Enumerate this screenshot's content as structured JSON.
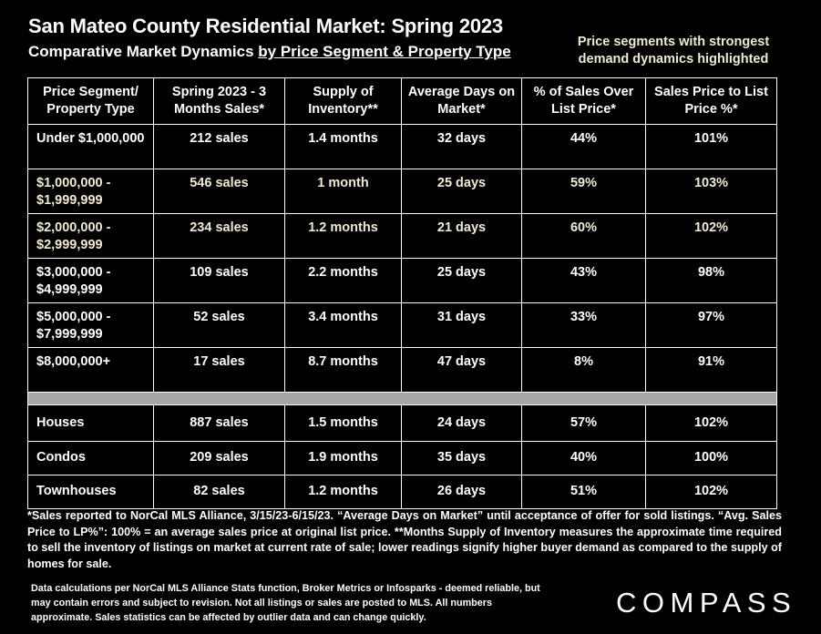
{
  "header": {
    "title": "San Mateo County Residential Market:  Spring 2023",
    "subtitle_plain": "Comparative Market Dynamics ",
    "subtitle_underlined": "by Price Segment & Property Type",
    "highlight_note": "Price segments with strongest demand dynamics highlighted"
  },
  "table": {
    "columns": [
      "Price Segment/ Property Type",
      "Spring 2023 - 3 Months Sales*",
      "Supply of Inventory**",
      "Average Days on Market*",
      "% of Sales Over List Price*",
      "Sales Price to List Price %*"
    ],
    "segments": [
      {
        "segment": "Under $1,000,000",
        "sales": "212 sales",
        "supply": "1.4 months",
        "dom": "32 days",
        "over_list": "44%",
        "sp_lp": "101%",
        "highlighted": false
      },
      {
        "segment": "$1,000,000 - $1,999,999",
        "sales": "546 sales",
        "supply": "1 month",
        "dom": "25 days",
        "over_list": "59%",
        "sp_lp": "103%",
        "highlighted": true
      },
      {
        "segment": "$2,000,000 - $2,999,999",
        "sales": "234 sales",
        "supply": "1.2 months",
        "dom": "21 days",
        "over_list": "60%",
        "sp_lp": "102%",
        "highlighted": true
      },
      {
        "segment": "$3,000,000 - $4,999,999",
        "sales": "109 sales",
        "supply": "2.2 months",
        "dom": "25 days",
        "over_list": "43%",
        "sp_lp": "98%",
        "highlighted": false
      },
      {
        "segment": "$5,000,000 - $7,999,999",
        "sales": "52 sales",
        "supply": "3.4 months",
        "dom": "31 days",
        "over_list": "33%",
        "sp_lp": "97%",
        "highlighted": false
      },
      {
        "segment": "$8,000,000+",
        "sales": "17 sales",
        "supply": "8.7 months",
        "dom": "47 days",
        "over_list": "8%",
        "sp_lp": "91%",
        "highlighted": false
      }
    ],
    "property_types": [
      {
        "segment": "Houses",
        "sales": "887 sales",
        "supply": "1.5 months",
        "dom": "24 days",
        "over_list": "57%",
        "sp_lp": "102%"
      },
      {
        "segment": "Condos",
        "sales": "209 sales",
        "supply": "1.9 months",
        "dom": "35 days",
        "over_list": "40%",
        "sp_lp": "100%"
      },
      {
        "segment": "Townhouses",
        "sales": "82 sales",
        "supply": "1.2 months",
        "dom": "26 days",
        "over_list": "51%",
        "sp_lp": "102%"
      }
    ]
  },
  "footnote": "*Sales reported to NorCal MLS Alliance, 3/15/23-6/15/23. “Average Days on Market” until acceptance of offer for sold listings. “Avg. Sales Price to LP%”: 100% = an average sales price at original list price. **Months Supply of Inventory measures the approximate time required to sell the inventory of listings on market at current rate of sale; lower readings signify higher buyer demand as compared to the supply of homes for sale.",
  "disclaimer": "Data calculations per NorCal MLS Alliance Stats function, Broker Metrics or Infosparks - deemed reliable, but may contain errors and subject to revision.  Not all listings or sales are posted to MLS. All numbers approximate. Sales statistics can be affected by outlier data and can change quickly.",
  "brand": {
    "logo_text": "COMPASS",
    "highlight_color": "#f2ead0"
  }
}
